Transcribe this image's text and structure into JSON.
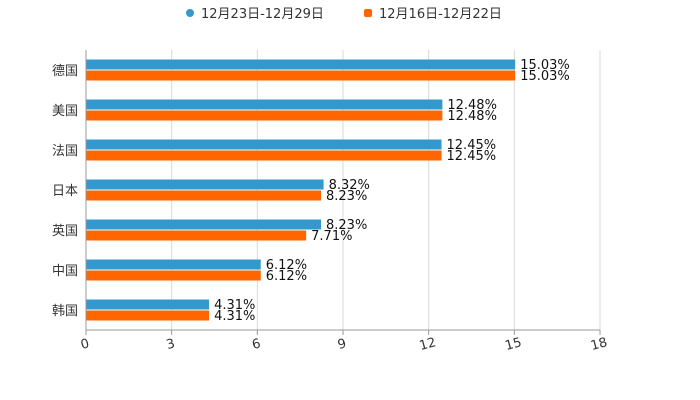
{
  "chart_data": {
    "type": "bar",
    "orientation": "horizontal",
    "title": "",
    "xlabel": "",
    "ylabel": "",
    "xlim": [
      0,
      18
    ],
    "x_ticks": [
      0,
      3,
      6,
      9,
      12,
      15,
      18
    ],
    "grid": true,
    "legend_position": "top-center",
    "categories": [
      "德国",
      "美国",
      "法国",
      "日本",
      "英国",
      "中国",
      "韩国"
    ],
    "series": [
      {
        "name": "12月23日-12月29日",
        "color": "#3399cc",
        "values": [
          15.03,
          12.48,
          12.45,
          8.32,
          8.23,
          6.12,
          4.31
        ],
        "labels": [
          "15.03%",
          "12.48%",
          "12.45%",
          "8.32%",
          "8.23%",
          "6.12%",
          "4.31%"
        ]
      },
      {
        "name": "12月16日-12月22日",
        "color": "#ff6600",
        "values": [
          15.03,
          12.48,
          12.45,
          8.23,
          7.71,
          6.12,
          4.31
        ],
        "labels": [
          "15.03%",
          "12.48%",
          "12.45%",
          "8.23%",
          "7.71%",
          "6.12%",
          "4.31%"
        ]
      }
    ]
  }
}
